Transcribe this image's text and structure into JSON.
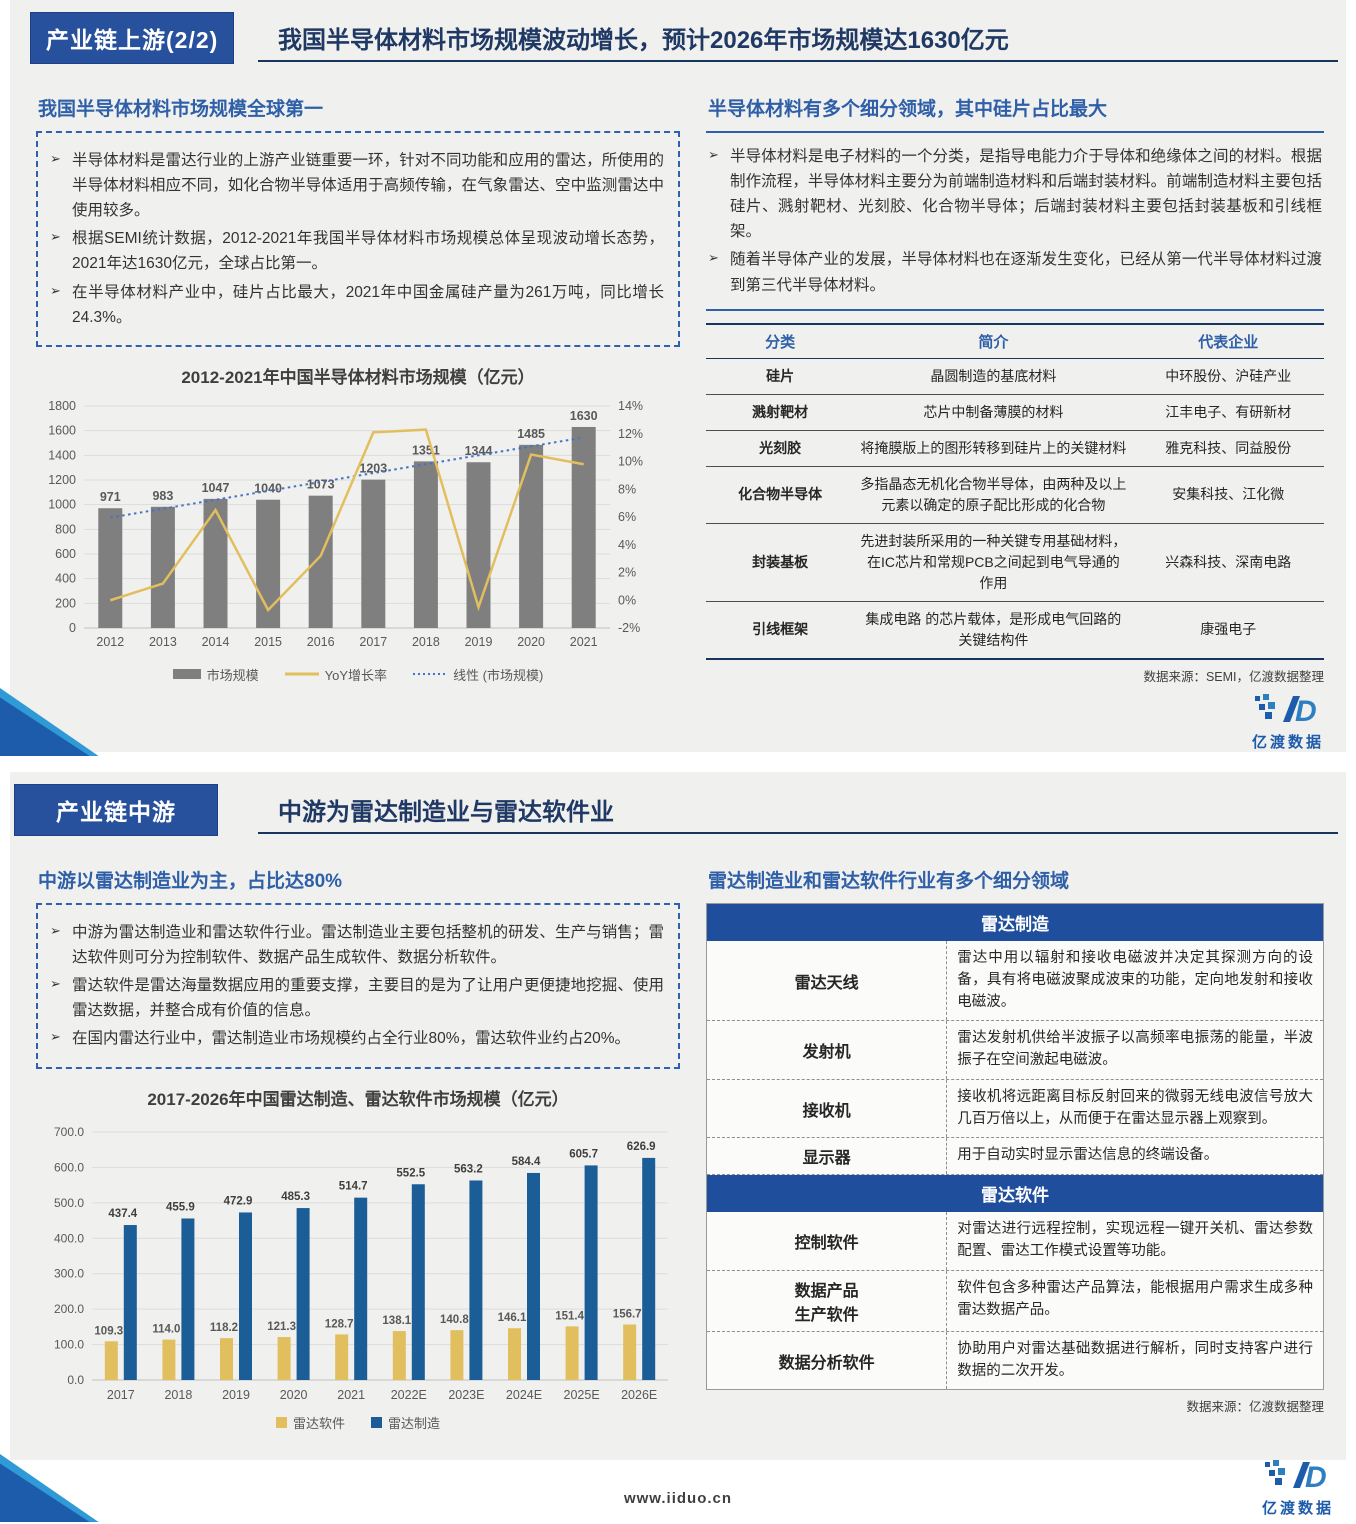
{
  "colors": {
    "badge_blue": "#27509d",
    "band_blue": "#1f4e9c",
    "title_blue": "#1f3864",
    "section_blue": "#2e5fa8",
    "bar_gray": "#7f7f7f",
    "line_yellow": "#e2bf5e",
    "bar_blue": "#1b5e97",
    "trend_blue": "#4472c4"
  },
  "slide1": {
    "badge": "产业链上游(2/2)",
    "title": "我国半导体材料市场规模波动增长，预计2026年市场规模达1630亿元",
    "left": {
      "section_title": "我国半导体材料市场规模全球第一",
      "bullets": [
        "半导体材料是雷达行业的上游产业链重要一环，针对不同功能和应用的雷达，所使用的半导体材料相应不同，如化合物半导体适用于高频传输，在气象雷达、空中监测雷达中使用较多。",
        "根据SEMI统计数据，2012-2021年我国半导体材料市场规模总体呈现波动增长态势，2021年达1630亿元，全球占比第一。",
        "在半导体材料产业中，硅片占比最大，2021年中国金属硅产量为261万吨，同比增长24.3%。"
      ]
    },
    "right": {
      "section_title": "半导体材料有多个细分领域，其中硅片占比最大",
      "bullets": [
        "半导体材料是电子材料的一个分类，是指导电能力介于导体和绝缘体之间的材料。根据制作流程，半导体材料主要分为前端制造材料和后端封装材料。前端制造材料主要包括硅片、溅射靶材、光刻胶、化合物半导体；后端封装材料主要包括封装基板和引线框架。",
        "随着半导体产业的发展，半导体材料也在逐渐发生变化，已经从第一代半导体材料过渡到第三代半导体材料。"
      ],
      "table": {
        "headers": [
          "分类",
          "简介",
          "代表企业"
        ],
        "rows": [
          [
            "硅片",
            "晶圆制造的基底材料",
            "中环股份、沪硅产业"
          ],
          [
            "溅射靶材",
            "芯片中制备薄膜的材料",
            "江丰电子、有研新材"
          ],
          [
            "光刻胶",
            "将掩膜版上的图形转移到硅片上的关键材料",
            "雅克科技、同益股份"
          ],
          [
            "化合物半导体",
            "多指晶态无机化合物半导体，由两种及以上元素以确定的原子配比形成的化合物",
            "安集科技、江化微"
          ],
          [
            "封装基板",
            "先进封装所采用的一种关键专用基础材料，在IC芯片和常规PCB之间起到电气导通的作用",
            "兴森科技、深南电路"
          ],
          [
            "引线框架",
            "集成电路 的芯片载体，是形成电气回路的关键结构件",
            "康强电子"
          ]
        ]
      },
      "source": "数据来源：SEMI，亿渡数据整理"
    }
  },
  "slide2": {
    "badge": "产业链中游",
    "title": "中游为雷达制造业与雷达软件业",
    "left": {
      "section_title": "中游以雷达制造业为主，占比达80%",
      "bullets": [
        "中游为雷达制造业和雷达软件行业。雷达制造业主要包括整机的研发、生产与销售；雷达软件则可分为控制软件、数据产品生成软件、数据分析软件。",
        "雷达软件是雷达海量数据应用的重要支撑，主要目的是为了让用户更便捷地挖掘、使用雷达数据，并整合成有价值的信息。",
        "在国内雷达行业中，雷达制造业市场规模约占全行业80%，雷达软件业约占20%。"
      ]
    },
    "right": {
      "section_title": "雷达制造业和雷达软件行业有多个细分领域",
      "sections": [
        {
          "header": "雷达制造",
          "rows": [
            [
              "雷达天线",
              "雷达中用以辐射和接收电磁波并决定其探测方向的设备，具有将电磁波聚成波束的功能，定向地发射和接收电磁波。"
            ],
            [
              "发射机",
              "雷达发射机供给半波振子以高频率电振荡的能量，半波振子在空间激起电磁波。"
            ],
            [
              "接收机",
              "接收机将远距离目标反射回来的微弱无线电波信号放大几百万倍以上，从而便于在雷达显示器上观察到。"
            ],
            [
              "显示器",
              "用于自动实时显示雷达信息的终端设备。"
            ]
          ]
        },
        {
          "header": "雷达软件",
          "rows": [
            [
              "控制软件",
              "对雷达进行远程控制，实现远程一键开关机、雷达参数配置、雷达工作模式设置等功能。"
            ],
            [
              "数据产品\n生产软件",
              "软件包含多种雷达产品算法，能根据用户需求生成多种雷达数据产品。"
            ],
            [
              "数据分析软件",
              "协助用户对雷达基础数据进行解析，同时支持客户进行数据的二次开发。"
            ]
          ]
        }
      ],
      "source": "数据来源：亿渡数据整理"
    }
  },
  "chart_data": [
    {
      "type": "bar",
      "title": "2012-2021年中国半导体材料市场规模（亿元）",
      "categories": [
        "2012",
        "2013",
        "2014",
        "2015",
        "2016",
        "2017",
        "2018",
        "2019",
        "2020",
        "2021"
      ],
      "series": [
        {
          "name": "市场规模",
          "type": "bar",
          "axis": "left",
          "color": "#7f7f7f",
          "values": [
            971,
            983,
            1047,
            1040,
            1073,
            1203,
            1351,
            1344,
            1485,
            1630
          ]
        },
        {
          "name": "YoY增长率",
          "type": "line",
          "axis": "right",
          "color": "#e2bf5e",
          "values": [
            0.0,
            1.2,
            6.5,
            -0.7,
            3.2,
            12.1,
            12.3,
            -0.5,
            10.5,
            9.8
          ]
        },
        {
          "name": "线性 (市场规模)",
          "type": "trendline",
          "axis": "left",
          "color": "#4472c4",
          "trend_start": 895,
          "trend_end": 1545
        }
      ],
      "left_axis": {
        "min": 0,
        "max": 1800,
        "step": 200
      },
      "right_axis": {
        "min": -2,
        "max": 14,
        "step": 2,
        "suffix": "%"
      },
      "grid": true,
      "legend_position": "bottom"
    },
    {
      "type": "bar",
      "title": "2017-2026年中国雷达制造、雷达软件市场规模（亿元）",
      "categories": [
        "2017",
        "2018",
        "2019",
        "2020",
        "2021",
        "2022E",
        "2023E",
        "2024E",
        "2025E",
        "2026E"
      ],
      "series": [
        {
          "name": "雷达软件",
          "color": "#e2bf5e",
          "values": [
            109.3,
            114.0,
            118.2,
            121.3,
            128.7,
            138.1,
            140.8,
            146.1,
            151.4,
            156.7
          ]
        },
        {
          "name": "雷达制造",
          "color": "#1b5e97",
          "values": [
            437.4,
            455.9,
            472.9,
            485.3,
            514.7,
            552.5,
            563.2,
            584.4,
            605.7,
            626.9
          ]
        }
      ],
      "y_axis": {
        "min": 0,
        "max": 700,
        "step": 100,
        "decimals": 1
      },
      "grid": true,
      "legend_position": "bottom"
    }
  ],
  "footer": {
    "url": "www.iiduo.cn",
    "logo_text": "亿渡数据"
  }
}
